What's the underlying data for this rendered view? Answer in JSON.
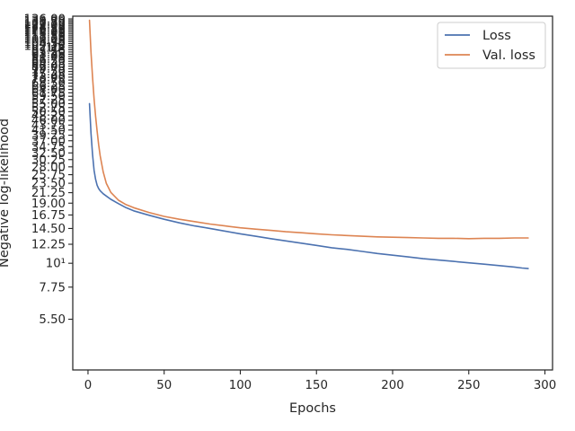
{
  "chart_data": {
    "type": "line",
    "xlabel": "Epochs",
    "ylabel": "Negative log-likelihood",
    "xlim": [
      -10,
      305
    ],
    "x_ticks": [
      0,
      50,
      100,
      150,
      200,
      250,
      300
    ],
    "yscale": "log",
    "ylim": [
      3.2,
      140
    ],
    "y_ticks": [
      {
        "value": 5.5,
        "label": "5.50"
      },
      {
        "value": 7.75,
        "label": "7.75"
      },
      {
        "value": 10,
        "label": "10¹"
      },
      {
        "value": 12.25,
        "label": "12.25"
      },
      {
        "value": 14.5,
        "label": "14.50"
      },
      {
        "value": 16.75,
        "label": "16.75"
      },
      {
        "value": 19.0,
        "label": "19.00"
      },
      {
        "value": 21.25,
        "label": "21.25"
      },
      {
        "value": 23.5,
        "label": "23.50"
      },
      {
        "value": 25.75,
        "label": "25.75"
      },
      {
        "value": 28.0,
        "label": "28.00"
      },
      {
        "value": 30.25,
        "label": "30.25"
      },
      {
        "value": 32.5,
        "label": "32.50"
      },
      {
        "value": 34.75,
        "label": "34.75"
      },
      {
        "value": 37.0,
        "label": "37.00"
      },
      {
        "value": 39.25,
        "label": "39.25"
      },
      {
        "value": 41.5,
        "label": "41.50"
      },
      {
        "value": 43.75,
        "label": "43.75"
      },
      {
        "value": 46.0,
        "label": "46.00"
      },
      {
        "value": 48.25,
        "label": "48.25"
      },
      {
        "value": 50.5,
        "label": "50.50"
      },
      {
        "value": 52.75,
        "label": "52.75"
      },
      {
        "value": 55.0,
        "label": "55.00"
      },
      {
        "value": 57.25,
        "label": "57.25"
      },
      {
        "value": 59.5,
        "label": "59.50"
      },
      {
        "value": 61.75,
        "label": "61.75"
      },
      {
        "value": 64.0,
        "label": "64.00"
      },
      {
        "value": 66.25,
        "label": "66.25"
      },
      {
        "value": 68.5,
        "label": "68.50"
      },
      {
        "value": 70.75,
        "label": "70.75"
      },
      {
        "value": 73.0,
        "label": "73.00"
      },
      {
        "value": 75.25,
        "label": "75.25"
      },
      {
        "value": 77.5,
        "label": "77.50"
      },
      {
        "value": 79.75,
        "label": "79.75"
      },
      {
        "value": 82.0,
        "label": "82.00"
      },
      {
        "value": 84.25,
        "label": "84.25"
      },
      {
        "value": 86.5,
        "label": "86.50"
      },
      {
        "value": 88.75,
        "label": "88.75"
      },
      {
        "value": 91.0,
        "label": "91.00"
      },
      {
        "value": 93.25,
        "label": "93.25"
      },
      {
        "value": 95.5,
        "label": "95.50"
      },
      {
        "value": 97.75,
        "label": "97.75"
      },
      {
        "value": 100,
        "label": "10²"
      },
      {
        "value": 102.25,
        "label": "102.25"
      },
      {
        "value": 104.5,
        "label": "104.50"
      },
      {
        "value": 106.75,
        "label": "106.75"
      },
      {
        "value": 109.0,
        "label": "109.00"
      },
      {
        "value": 111.25,
        "label": "111.25"
      },
      {
        "value": 113.5,
        "label": "113.50"
      },
      {
        "value": 115.75,
        "label": "115.75"
      },
      {
        "value": 118.0,
        "label": "118.00"
      },
      {
        "value": 120.25,
        "label": "120.25"
      },
      {
        "value": 122.5,
        "label": "122.50"
      },
      {
        "value": 124.75,
        "label": "124.75"
      },
      {
        "value": 127.0,
        "label": "127.00"
      },
      {
        "value": 129.25,
        "label": "129.25"
      },
      {
        "value": 131.5,
        "label": "131.50"
      },
      {
        "value": 133.75,
        "label": "133.75"
      },
      {
        "value": 136.0,
        "label": "136.00"
      }
    ],
    "grid": false,
    "legend_position": "top-right",
    "series": [
      {
        "name": "Loss",
        "color": "#4c72b0",
        "x": [
          1,
          2,
          3,
          4,
          5,
          6,
          7,
          8,
          10,
          12,
          15,
          20,
          25,
          30,
          40,
          50,
          60,
          70,
          80,
          90,
          100,
          110,
          120,
          130,
          140,
          150,
          160,
          170,
          180,
          190,
          200,
          210,
          220,
          230,
          240,
          250,
          260,
          270,
          280,
          285,
          289
        ],
        "y": [
          55.0,
          40.0,
          32.0,
          27.0,
          24.5,
          23.0,
          22.2,
          21.7,
          21.0,
          20.5,
          19.8,
          18.9,
          18.1,
          17.5,
          16.7,
          16.0,
          15.4,
          14.9,
          14.5,
          14.1,
          13.7,
          13.35,
          13.0,
          12.7,
          12.4,
          12.1,
          11.8,
          11.6,
          11.35,
          11.1,
          10.9,
          10.7,
          10.5,
          10.35,
          10.2,
          10.05,
          9.9,
          9.75,
          9.6,
          9.5,
          9.45
        ]
      },
      {
        "name": "Val. loss",
        "color": "#dd8452",
        "x": [
          1,
          2,
          3,
          4,
          5,
          6,
          7,
          8,
          10,
          12,
          15,
          20,
          25,
          30,
          40,
          50,
          60,
          70,
          80,
          90,
          100,
          110,
          120,
          130,
          140,
          150,
          160,
          170,
          180,
          190,
          200,
          210,
          220,
          230,
          240,
          250,
          260,
          270,
          280,
          285,
          289
        ],
        "y": [
          134.0,
          95.0,
          73.0,
          58.0,
          48.0,
          41.0,
          35.5,
          31.5,
          26.5,
          23.5,
          21.3,
          19.6,
          18.7,
          18.1,
          17.2,
          16.5,
          16.0,
          15.6,
          15.2,
          14.9,
          14.6,
          14.4,
          14.2,
          14.0,
          13.85,
          13.7,
          13.55,
          13.45,
          13.35,
          13.25,
          13.2,
          13.15,
          13.1,
          13.05,
          13.05,
          13.0,
          13.05,
          13.05,
          13.1,
          13.1,
          13.1
        ]
      }
    ]
  }
}
